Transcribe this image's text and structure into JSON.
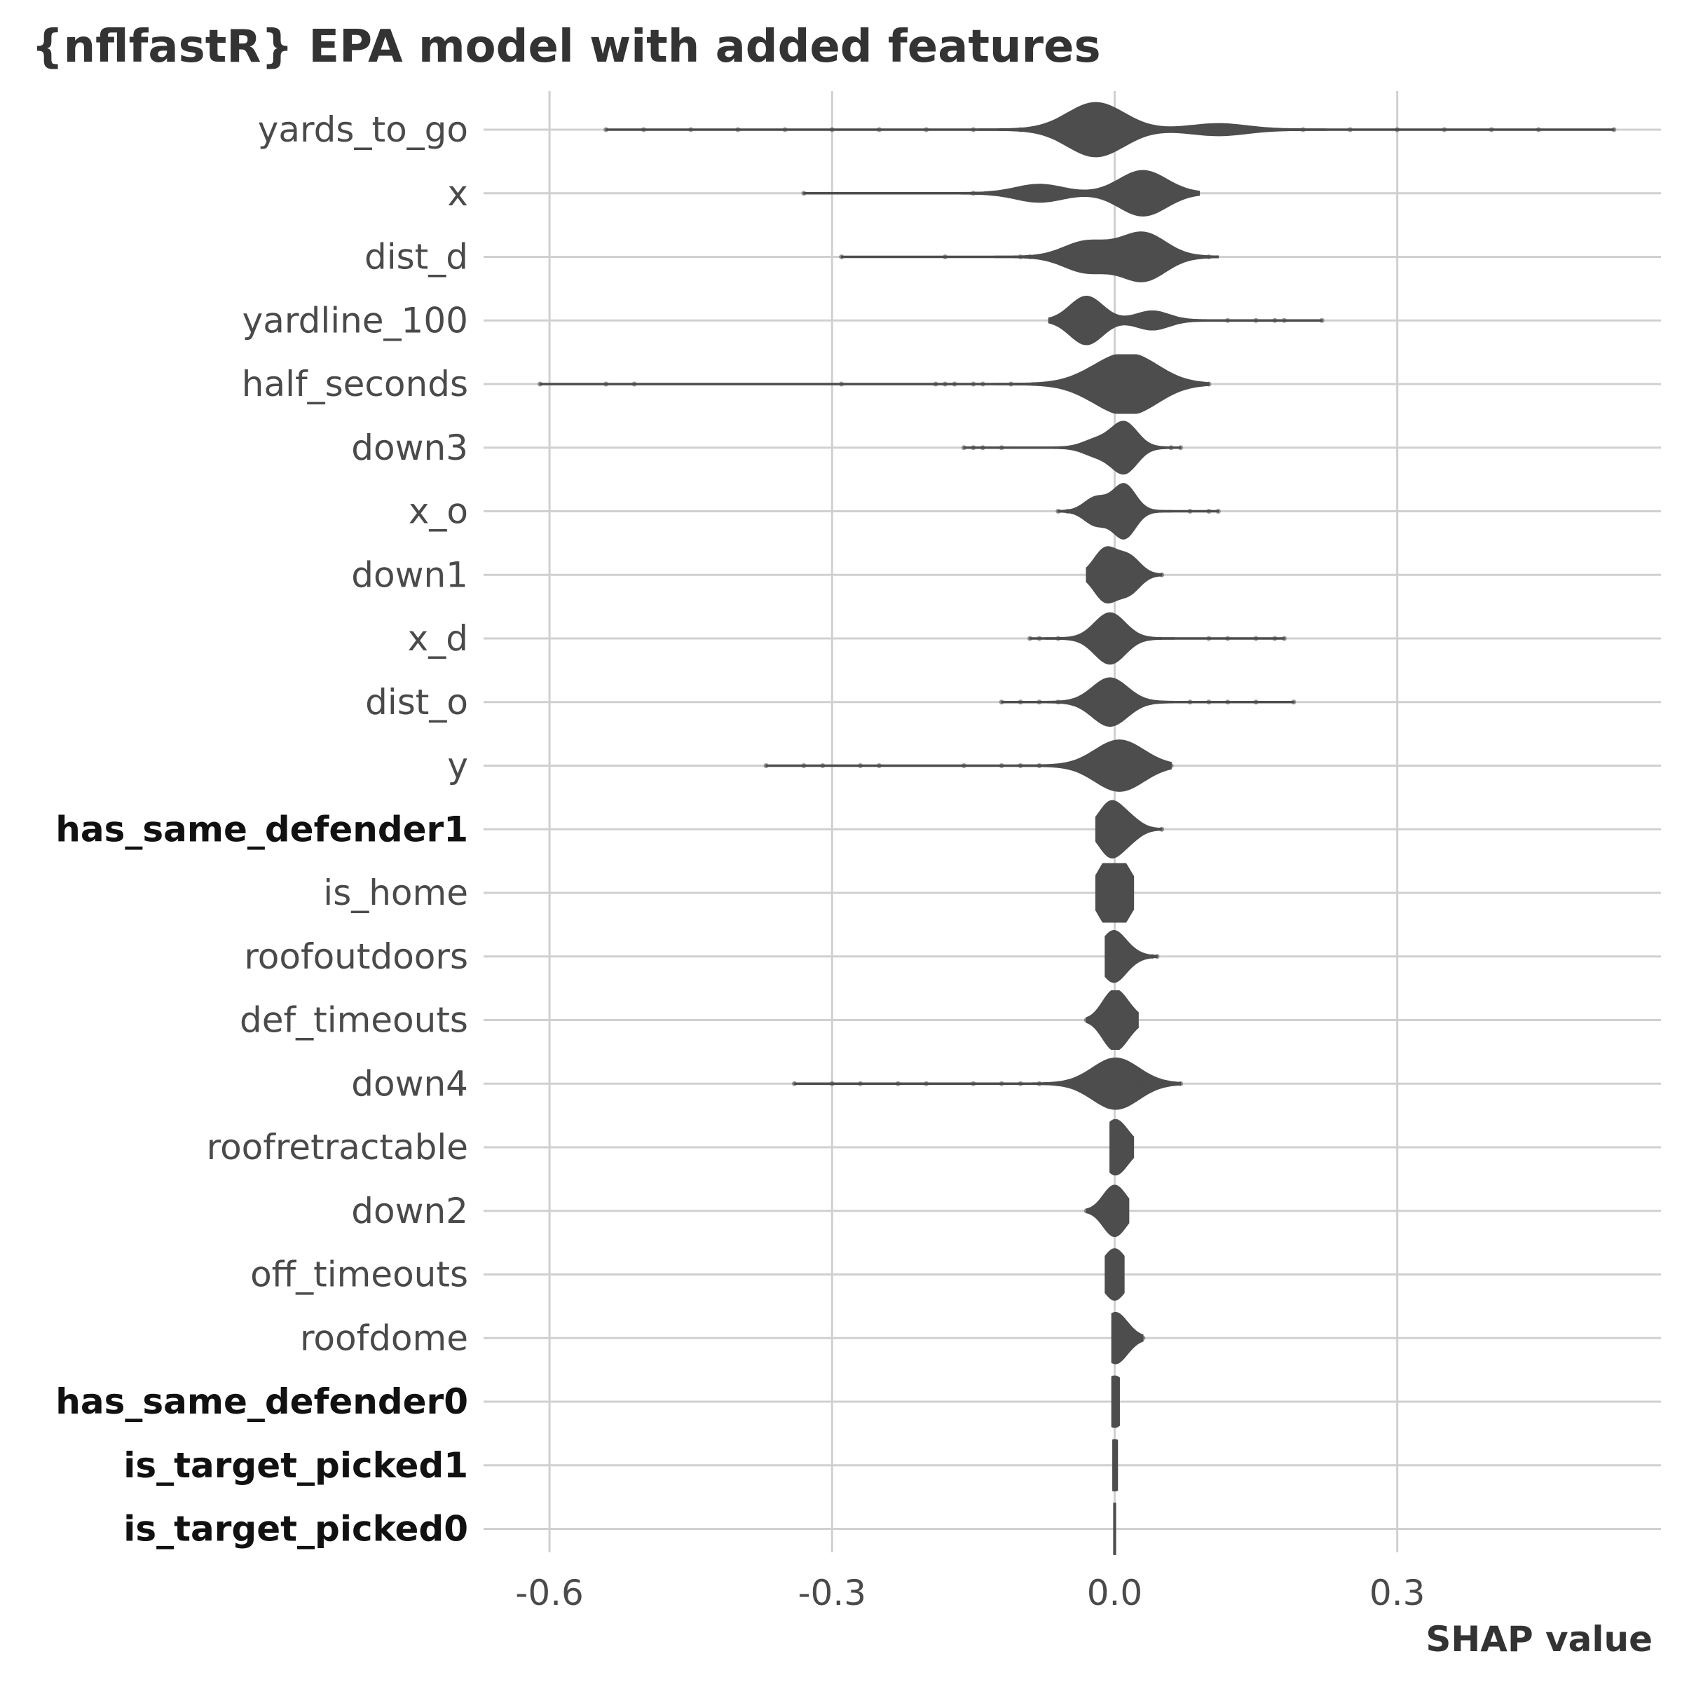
{
  "chart_data": {
    "type": "scatter",
    "subtype": "SHAP summary (violin/beeswarm)",
    "title": "{nflfastR} EPA model with added features",
    "xlabel": "SHAP value",
    "ylabel": "",
    "xlim": [
      -0.67,
      0.58
    ],
    "xticks": [
      -0.6,
      -0.3,
      0.0,
      0.3
    ],
    "xtick_labels": [
      "-0.6",
      "-0.3",
      "0.0",
      "0.3"
    ],
    "grid": true,
    "mark_color": "#4d4d4d",
    "features": [
      {
        "name": "yards_to_go",
        "bold": false,
        "min": -0.54,
        "max": 0.53,
        "modes": [
          {
            "at": -0.02,
            "height": 0.9
          },
          {
            "at": 0.11,
            "height": 0.18
          }
        ],
        "outliers": [
          -0.54,
          -0.5,
          -0.45,
          -0.4,
          -0.35,
          -0.3,
          -0.25,
          -0.2,
          -0.15,
          -0.1,
          0.15,
          0.2,
          0.25,
          0.3,
          0.35,
          0.4,
          0.45,
          0.53
        ]
      },
      {
        "name": "x",
        "bold": false,
        "min": -0.33,
        "max": 0.09,
        "modes": [
          {
            "at": -0.08,
            "height": 0.28
          },
          {
            "at": 0.03,
            "height": 0.75
          }
        ],
        "outliers": [
          -0.33,
          -0.15,
          -0.13,
          0.08
        ]
      },
      {
        "name": "dist_d",
        "bold": false,
        "min": -0.29,
        "max": 0.11,
        "modes": [
          {
            "at": -0.03,
            "height": 0.5
          },
          {
            "at": 0.03,
            "height": 0.8
          }
        ],
        "outliers": [
          -0.29,
          -0.18,
          -0.1,
          -0.09,
          0.09,
          0.1
        ]
      },
      {
        "name": "yardline_100",
        "bold": false,
        "min": -0.07,
        "max": 0.22,
        "modes": [
          {
            "at": -0.03,
            "height": 0.8
          },
          {
            "at": 0.04,
            "height": 0.3
          }
        ],
        "outliers": [
          -0.06,
          0.12,
          0.15,
          0.17,
          0.18,
          0.22
        ]
      },
      {
        "name": "half_seconds",
        "bold": false,
        "min": -0.61,
        "max": 0.1,
        "modes": [
          {
            "at": -0.01,
            "height": 0.35
          },
          {
            "at": 0.02,
            "height": 0.8
          }
        ],
        "outliers": [
          -0.61,
          -0.54,
          -0.51,
          -0.29,
          -0.19,
          -0.18,
          -0.17,
          -0.15,
          -0.14,
          -0.11,
          0.07,
          0.09,
          0.1
        ]
      },
      {
        "name": "down3",
        "bold": false,
        "min": -0.16,
        "max": 0.07,
        "modes": [
          {
            "at": -0.02,
            "height": 0.25
          },
          {
            "at": 0.01,
            "height": 0.85
          }
        ],
        "outliers": [
          -0.16,
          -0.15,
          -0.14,
          -0.12,
          0.06,
          0.07
        ]
      },
      {
        "name": "x_o",
        "bold": false,
        "min": -0.06,
        "max": 0.11,
        "modes": [
          {
            "at": -0.02,
            "height": 0.45
          },
          {
            "at": 0.01,
            "height": 0.9
          }
        ],
        "outliers": [
          -0.06,
          -0.05,
          0.08,
          0.1,
          0.11
        ]
      },
      {
        "name": "down1",
        "bold": false,
        "min": -0.03,
        "max": 0.05,
        "modes": [
          {
            "at": -0.01,
            "height": 0.85
          },
          {
            "at": 0.015,
            "height": 0.6
          }
        ],
        "outliers": [
          0.04,
          0.05
        ]
      },
      {
        "name": "x_d",
        "bold": false,
        "min": -0.09,
        "max": 0.18,
        "modes": [
          {
            "at": -0.005,
            "height": 0.85
          }
        ],
        "outliers": [
          -0.09,
          -0.08,
          -0.06,
          0.1,
          0.12,
          0.15,
          0.17,
          0.18
        ]
      },
      {
        "name": "dist_o",
        "bold": false,
        "min": -0.12,
        "max": 0.19,
        "modes": [
          {
            "at": -0.005,
            "height": 0.8
          }
        ],
        "outliers": [
          -0.12,
          -0.1,
          -0.08,
          -0.06,
          0.08,
          0.1,
          0.12,
          0.15,
          0.19
        ]
      },
      {
        "name": "y",
        "bold": false,
        "min": -0.37,
        "max": 0.06,
        "modes": [
          {
            "at": 0.005,
            "height": 0.85
          }
        ],
        "outliers": [
          -0.37,
          -0.33,
          -0.31,
          -0.27,
          -0.25,
          -0.16,
          -0.12,
          -0.1,
          -0.08,
          0.05,
          0.06
        ]
      },
      {
        "name": "has_same_defender1",
        "bold": true,
        "min": -0.02,
        "max": 0.05,
        "modes": [
          {
            "at": -0.005,
            "height": 0.85
          },
          {
            "at": 0.015,
            "height": 0.35
          }
        ],
        "outliers": [
          0.05
        ]
      },
      {
        "name": "is_home",
        "bold": false,
        "min": -0.02,
        "max": 0.02,
        "modes": [
          {
            "at": -0.008,
            "height": 0.85
          },
          {
            "at": 0.008,
            "height": 0.8
          }
        ],
        "outliers": []
      },
      {
        "name": "roofoutdoors",
        "bold": false,
        "min": -0.01,
        "max": 0.045,
        "modes": [
          {
            "at": -0.002,
            "height": 0.8
          },
          {
            "at": 0.015,
            "height": 0.15
          }
        ],
        "outliers": [
          0.04,
          0.045
        ]
      },
      {
        "name": "def_timeouts",
        "bold": false,
        "min": -0.03,
        "max": 0.025,
        "modes": [
          {
            "at": -0.002,
            "height": 0.85
          },
          {
            "at": 0.012,
            "height": 0.3
          }
        ],
        "outliers": [
          -0.03,
          -0.02
        ]
      },
      {
        "name": "down4",
        "bold": false,
        "min": -0.34,
        "max": 0.07,
        "modes": [
          {
            "at": 0.001,
            "height": 0.85
          }
        ],
        "outliers": [
          -0.34,
          -0.3,
          -0.27,
          -0.23,
          -0.2,
          -0.15,
          -0.12,
          -0.1,
          -0.08,
          -0.06,
          -0.04,
          0.03,
          0.05,
          0.07
        ]
      },
      {
        "name": "roofretractable",
        "bold": false,
        "min": -0.005,
        "max": 0.02,
        "modes": [
          {
            "at": -0.001,
            "height": 0.8
          },
          {
            "at": 0.012,
            "height": 0.2
          }
        ],
        "outliers": []
      },
      {
        "name": "down2",
        "bold": false,
        "min": -0.03,
        "max": 0.015,
        "modes": [
          {
            "at": 0.0,
            "height": 0.85
          }
        ],
        "outliers": [
          -0.03
        ]
      },
      {
        "name": "off_timeouts",
        "bold": false,
        "min": -0.01,
        "max": 0.01,
        "modes": [
          {
            "at": 0.0,
            "height": 0.85
          }
        ],
        "outliers": []
      },
      {
        "name": "roofdome",
        "bold": false,
        "min": -0.003,
        "max": 0.03,
        "modes": [
          {
            "at": 0.0,
            "height": 0.8
          },
          {
            "at": 0.015,
            "height": 0.1
          }
        ],
        "outliers": [
          0.03
        ]
      },
      {
        "name": "has_same_defender0",
        "bold": true,
        "min": -0.003,
        "max": 0.005,
        "modes": [
          {
            "at": 0.0,
            "height": 0.85
          }
        ],
        "outliers": []
      },
      {
        "name": "is_target_picked1",
        "bold": true,
        "min": -0.002,
        "max": 0.003,
        "modes": [
          {
            "at": 0.0,
            "height": 0.85
          }
        ],
        "outliers": []
      },
      {
        "name": "is_target_picked0",
        "bold": true,
        "min": -0.001,
        "max": 0.001,
        "modes": [
          {
            "at": 0.0,
            "height": 0.85
          }
        ],
        "outliers": []
      }
    ]
  }
}
